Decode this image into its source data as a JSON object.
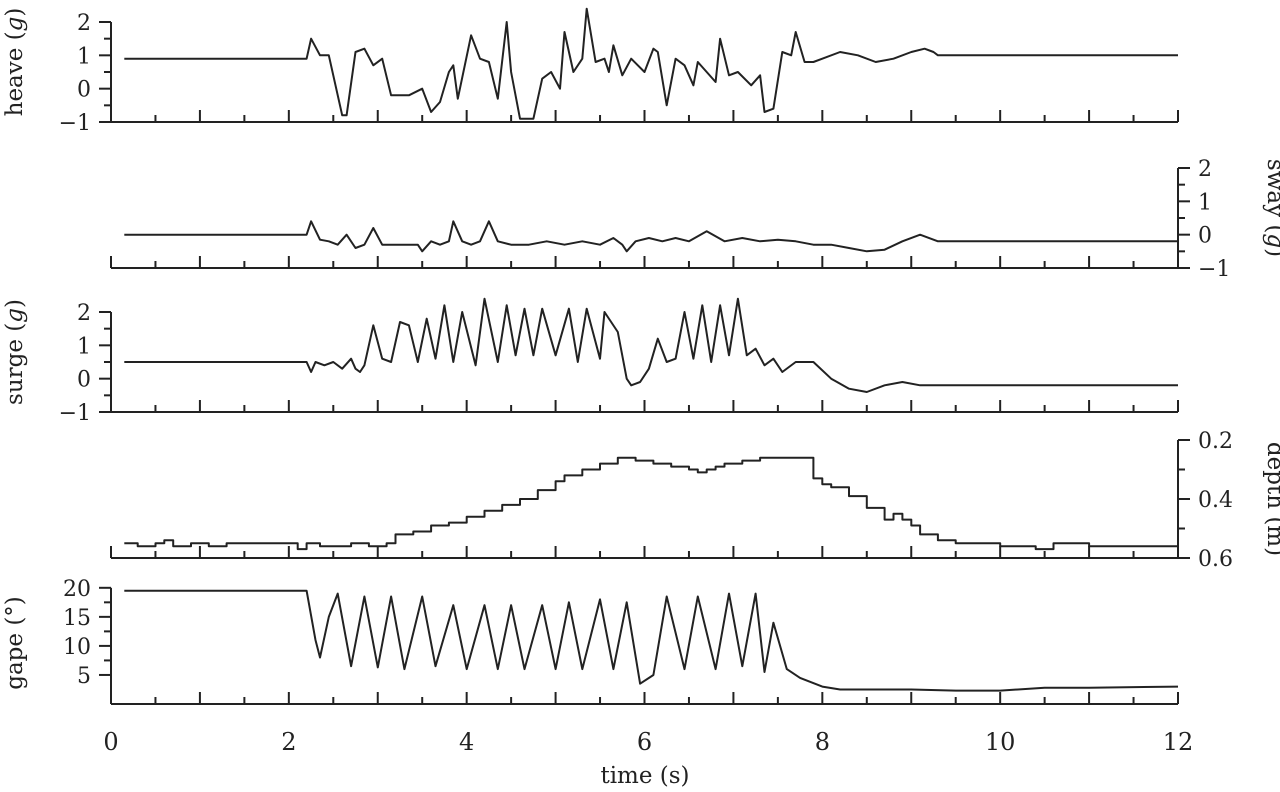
{
  "chart_data": [
    {
      "type": "line",
      "id": "heave",
      "ylabel": "heave (g)",
      "ylabel_parts": [
        "heave (",
        "g",
        ")"
      ],
      "ylabel_side": "left",
      "ylim": [
        -1,
        2.6
      ],
      "yticks": [
        -1,
        0,
        1,
        2
      ],
      "ytick_labels": [
        "−1",
        "0",
        "1",
        "2"
      ],
      "x": [
        0.15,
        2.2,
        2.25,
        2.35,
        2.45,
        2.6,
        2.65,
        2.75,
        2.85,
        2.95,
        3.05,
        3.15,
        3.35,
        3.5,
        3.6,
        3.7,
        3.8,
        3.85,
        3.9,
        4.05,
        4.15,
        4.25,
        4.35,
        4.45,
        4.5,
        4.6,
        4.75,
        4.85,
        4.95,
        5.05,
        5.1,
        5.2,
        5.3,
        5.35,
        5.45,
        5.55,
        5.6,
        5.65,
        5.75,
        5.85,
        6.0,
        6.1,
        6.15,
        6.25,
        6.35,
        6.45,
        6.55,
        6.6,
        6.7,
        6.8,
        6.85,
        6.95,
        7.05,
        7.2,
        7.3,
        7.35,
        7.45,
        7.55,
        7.65,
        7.7,
        7.8,
        7.9,
        8.0,
        8.2,
        8.4,
        8.6,
        8.8,
        9.0,
        9.15,
        9.25,
        9.3,
        10.0,
        11.0,
        12.0
      ],
      "values": [
        0.9,
        0.9,
        1.5,
        1.0,
        1.0,
        -0.8,
        -0.8,
        1.1,
        1.2,
        0.7,
        0.9,
        -0.2,
        -0.2,
        0.0,
        -0.7,
        -0.4,
        0.5,
        0.7,
        -0.3,
        1.6,
        0.9,
        0.8,
        -0.3,
        2.0,
        0.5,
        -0.9,
        -0.9,
        0.3,
        0.5,
        0.0,
        1.7,
        0.5,
        0.9,
        2.4,
        0.8,
        0.9,
        0.5,
        1.3,
        0.4,
        0.9,
        0.5,
        1.2,
        1.1,
        -0.5,
        0.9,
        0.7,
        0.1,
        0.8,
        0.5,
        0.2,
        1.5,
        0.4,
        0.5,
        0.1,
        0.4,
        -0.7,
        -0.6,
        1.1,
        1.0,
        1.7,
        0.8,
        0.8,
        0.9,
        1.1,
        1.0,
        0.8,
        0.9,
        1.1,
        1.2,
        1.1,
        1.0,
        1.0,
        1.0,
        1.0
      ]
    },
    {
      "type": "line",
      "id": "sway",
      "ylabel": "sway (g)",
      "ylabel_parts": [
        "sway (",
        "g",
        ")"
      ],
      "ylabel_side": "right",
      "ylim": [
        -1,
        2.6
      ],
      "yticks": [
        -1,
        0,
        1,
        2
      ],
      "ytick_labels": [
        "−1",
        "0",
        "1",
        "2"
      ],
      "x": [
        0.15,
        2.2,
        2.25,
        2.35,
        2.45,
        2.55,
        2.65,
        2.75,
        2.85,
        2.95,
        3.05,
        3.15,
        3.3,
        3.45,
        3.5,
        3.6,
        3.7,
        3.8,
        3.85,
        3.95,
        4.05,
        4.15,
        4.25,
        4.35,
        4.5,
        4.7,
        4.9,
        5.1,
        5.3,
        5.5,
        5.65,
        5.75,
        5.8,
        5.9,
        6.05,
        6.2,
        6.35,
        6.5,
        6.7,
        6.9,
        7.1,
        7.3,
        7.5,
        7.7,
        7.9,
        8.1,
        8.3,
        8.5,
        8.7,
        8.9,
        9.1,
        9.3,
        10.0,
        12.0
      ],
      "values": [
        0.0,
        0.0,
        0.4,
        -0.15,
        -0.2,
        -0.3,
        0.0,
        -0.4,
        -0.3,
        0.2,
        -0.3,
        -0.3,
        -0.3,
        -0.3,
        -0.5,
        -0.2,
        -0.3,
        -0.2,
        0.4,
        -0.2,
        -0.3,
        -0.2,
        0.4,
        -0.2,
        -0.3,
        -0.3,
        -0.2,
        -0.3,
        -0.2,
        -0.3,
        -0.1,
        -0.3,
        -0.5,
        -0.2,
        -0.1,
        -0.2,
        -0.1,
        -0.2,
        0.1,
        -0.2,
        -0.1,
        -0.2,
        -0.15,
        -0.2,
        -0.3,
        -0.3,
        -0.4,
        -0.5,
        -0.45,
        -0.2,
        0.0,
        -0.2,
        -0.2,
        -0.2
      ]
    },
    {
      "type": "line",
      "id": "surge",
      "ylabel": "surge (g)",
      "ylabel_parts": [
        "surge (",
        "g",
        ")"
      ],
      "ylabel_side": "left",
      "ylim": [
        -1,
        2.6
      ],
      "yticks": [
        -1,
        0,
        1,
        2
      ],
      "ytick_labels": [
        "−1",
        "0",
        "1",
        "2"
      ],
      "x": [
        0.15,
        2.2,
        2.25,
        2.3,
        2.4,
        2.5,
        2.6,
        2.7,
        2.75,
        2.8,
        2.85,
        2.95,
        3.05,
        3.15,
        3.25,
        3.35,
        3.45,
        3.55,
        3.65,
        3.75,
        3.85,
        3.95,
        4.1,
        4.2,
        4.35,
        4.45,
        4.55,
        4.65,
        4.75,
        4.85,
        5.0,
        5.15,
        5.25,
        5.35,
        5.5,
        5.55,
        5.7,
        5.8,
        5.85,
        5.95,
        6.05,
        6.15,
        6.25,
        6.35,
        6.45,
        6.55,
        6.65,
        6.75,
        6.85,
        6.95,
        7.05,
        7.15,
        7.25,
        7.35,
        7.45,
        7.55,
        7.7,
        7.9,
        8.1,
        8.3,
        8.5,
        8.7,
        8.9,
        9.1,
        9.3,
        10.0,
        12.0
      ],
      "values": [
        0.5,
        0.5,
        0.2,
        0.5,
        0.4,
        0.5,
        0.3,
        0.6,
        0.3,
        0.2,
        0.4,
        1.6,
        0.6,
        0.5,
        1.7,
        1.6,
        0.5,
        1.8,
        0.6,
        2.2,
        0.5,
        2.0,
        0.4,
        2.4,
        0.5,
        2.2,
        0.7,
        2.1,
        0.7,
        2.1,
        0.7,
        2.1,
        0.5,
        2.1,
        0.6,
        2.0,
        1.4,
        0.0,
        -0.2,
        -0.1,
        0.3,
        1.2,
        0.5,
        0.6,
        2.0,
        0.6,
        2.2,
        0.5,
        2.2,
        0.7,
        2.4,
        0.7,
        0.9,
        0.4,
        0.6,
        0.2,
        0.5,
        0.5,
        0.0,
        -0.3,
        -0.4,
        -0.2,
        -0.1,
        -0.2,
        -0.2,
        -0.2,
        -0.2
      ]
    },
    {
      "type": "line",
      "id": "depth",
      "ylabel": "depth (m)",
      "ylabel_parts": [
        "depth (m)"
      ],
      "ylabel_side": "right",
      "ylim": [
        0.6,
        0.2
      ],
      "yticks": [
        0.2,
        0.4,
        0.6
      ],
      "ytick_labels": [
        "0.2",
        "0.4",
        "0.6"
      ],
      "step": true,
      "x": [
        0.15,
        0.3,
        0.5,
        0.6,
        0.7,
        0.9,
        1.1,
        1.3,
        1.5,
        1.7,
        1.9,
        2.1,
        2.2,
        2.35,
        2.5,
        2.7,
        2.9,
        3.1,
        3.2,
        3.4,
        3.6,
        3.8,
        4.0,
        4.2,
        4.4,
        4.6,
        4.8,
        5.0,
        5.1,
        5.3,
        5.5,
        5.7,
        5.8,
        5.9,
        6.0,
        6.1,
        6.2,
        6.3,
        6.4,
        6.5,
        6.6,
        6.7,
        6.8,
        6.9,
        7.0,
        7.1,
        7.3,
        7.5,
        7.7,
        7.9,
        8.0,
        8.1,
        8.3,
        8.5,
        8.7,
        8.8,
        8.9,
        9.0,
        9.1,
        9.3,
        9.5,
        9.7,
        10.0,
        10.2,
        10.4,
        10.6,
        11.0,
        12.0
      ],
      "values": [
        0.55,
        0.56,
        0.55,
        0.54,
        0.56,
        0.55,
        0.56,
        0.55,
        0.55,
        0.55,
        0.55,
        0.57,
        0.55,
        0.56,
        0.56,
        0.55,
        0.56,
        0.55,
        0.52,
        0.51,
        0.49,
        0.48,
        0.46,
        0.44,
        0.42,
        0.4,
        0.37,
        0.34,
        0.32,
        0.3,
        0.28,
        0.26,
        0.26,
        0.27,
        0.27,
        0.28,
        0.28,
        0.29,
        0.29,
        0.3,
        0.31,
        0.3,
        0.29,
        0.28,
        0.28,
        0.27,
        0.26,
        0.26,
        0.26,
        0.33,
        0.35,
        0.36,
        0.39,
        0.43,
        0.47,
        0.45,
        0.47,
        0.49,
        0.52,
        0.54,
        0.55,
        0.55,
        0.56,
        0.56,
        0.57,
        0.55,
        0.56,
        0.56
      ]
    },
    {
      "type": "line",
      "id": "gape",
      "ylabel": "gape (°)",
      "ylabel_parts": [
        "gape (°)"
      ],
      "ylabel_side": "left",
      "ylim": [
        0,
        21
      ],
      "yticks": [
        5,
        10,
        15,
        20
      ],
      "ytick_labels": [
        "5",
        "10",
        "15",
        "20"
      ],
      "x": [
        0.15,
        1.0,
        2.0,
        2.2,
        2.3,
        2.35,
        2.45,
        2.55,
        2.7,
        2.85,
        3.0,
        3.15,
        3.3,
        3.5,
        3.65,
        3.85,
        4.0,
        4.2,
        4.35,
        4.5,
        4.65,
        4.85,
        5.0,
        5.15,
        5.3,
        5.5,
        5.65,
        5.8,
        5.95,
        6.1,
        6.25,
        6.45,
        6.6,
        6.8,
        6.95,
        7.1,
        7.25,
        7.35,
        7.45,
        7.6,
        7.75,
        8.0,
        8.2,
        8.5,
        9.0,
        9.5,
        10.0,
        10.5,
        11.0,
        12.0
      ],
      "values": [
        19.5,
        19.5,
        19.5,
        19.5,
        11.0,
        8.0,
        15.0,
        19.0,
        6.5,
        18.5,
        6.3,
        18.5,
        6.0,
        18.5,
        6.5,
        17.0,
        6.0,
        17.0,
        6.0,
        17.0,
        6.0,
        17.0,
        6.0,
        17.5,
        6.0,
        18.0,
        6.0,
        17.5,
        3.5,
        5.0,
        18.5,
        6.0,
        18.5,
        6.0,
        19.0,
        6.5,
        19.0,
        5.5,
        14.0,
        6.0,
        4.5,
        3.0,
        2.5,
        2.5,
        2.5,
        2.3,
        2.3,
        2.8,
        2.8,
        3.0
      ]
    }
  ],
  "xaxis": {
    "label": "time (s)",
    "xlim": [
      0,
      12
    ],
    "major_ticks": [
      0,
      2,
      4,
      6,
      8,
      10,
      12
    ],
    "tick_labels": [
      "0",
      "2",
      "4",
      "6",
      "8",
      "10",
      "12"
    ]
  }
}
